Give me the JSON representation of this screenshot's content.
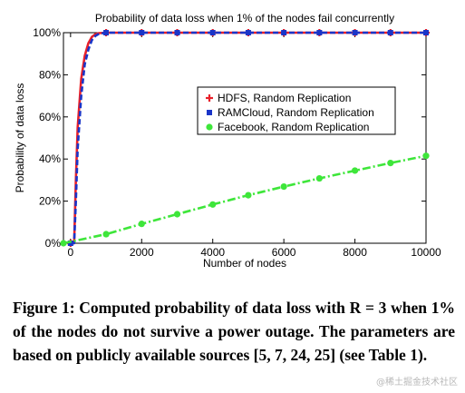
{
  "chart_data": {
    "type": "line",
    "title": "Probability of data loss when 1% of the nodes fail concurrently",
    "xlabel": "Number of nodes",
    "ylabel": "Probability of data loss",
    "xlim": [
      -200,
      10000
    ],
    "ylim": [
      0,
      100
    ],
    "x_ticks": [
      0,
      2000,
      4000,
      6000,
      8000,
      10000
    ],
    "x_tick_labels": [
      "0",
      "2000",
      "4000",
      "6000",
      "8000",
      "10000"
    ],
    "y_ticks": [
      0,
      20,
      40,
      60,
      80,
      100
    ],
    "y_tick_labels": [
      "0%",
      "20%",
      "40%",
      "60%",
      "80%",
      "100%"
    ],
    "grid": false,
    "legend_position": "right-middle",
    "series": [
      {
        "name": "HDFS, Random Replication",
        "color": "#e8202a",
        "marker": "plus",
        "x": [
          0,
          100,
          150,
          200,
          300,
          400,
          500,
          600,
          700,
          800,
          1000,
          2000,
          3000,
          4000,
          5000,
          6000,
          7000,
          8000,
          9000,
          10000
        ],
        "y": [
          0,
          0,
          30,
          55,
          78,
          89,
          95,
          98,
          99.3,
          99.8,
          100,
          100,
          100,
          100,
          100,
          100,
          100,
          100,
          100,
          100
        ]
      },
      {
        "name": "RAMCloud, Random Replication",
        "color": "#1a35c8",
        "marker": "square",
        "x": [
          0,
          100,
          150,
          200,
          300,
          400,
          500,
          600,
          700,
          800,
          1000,
          2000,
          3000,
          4000,
          5000,
          6000,
          7000,
          8000,
          9000,
          10000
        ],
        "y": [
          0,
          0,
          20,
          45,
          70,
          85,
          92,
          96.5,
          98.5,
          99.5,
          100,
          100,
          100,
          100,
          100,
          100,
          100,
          100,
          100,
          100
        ]
      },
      {
        "name": "Facebook, Random Replication",
        "color": "#3ee63a",
        "marker": "circle",
        "x": [
          -200,
          1000,
          2000,
          3000,
          4000,
          5000,
          6000,
          7000,
          8000,
          9000,
          10000
        ],
        "y": [
          0,
          4.3,
          9.2,
          13.8,
          18.4,
          22.8,
          26.9,
          30.8,
          34.5,
          38.1,
          41.5
        ]
      }
    ]
  },
  "caption": {
    "text": "Figure 1: Computed probability of data loss with R = 3 when 1% of the nodes do not survive a power outage. The parameters are based on publicly available sources [5, 7, 24, 25] (see Table 1)."
  },
  "watermark": "@稀土掘金技术社区"
}
